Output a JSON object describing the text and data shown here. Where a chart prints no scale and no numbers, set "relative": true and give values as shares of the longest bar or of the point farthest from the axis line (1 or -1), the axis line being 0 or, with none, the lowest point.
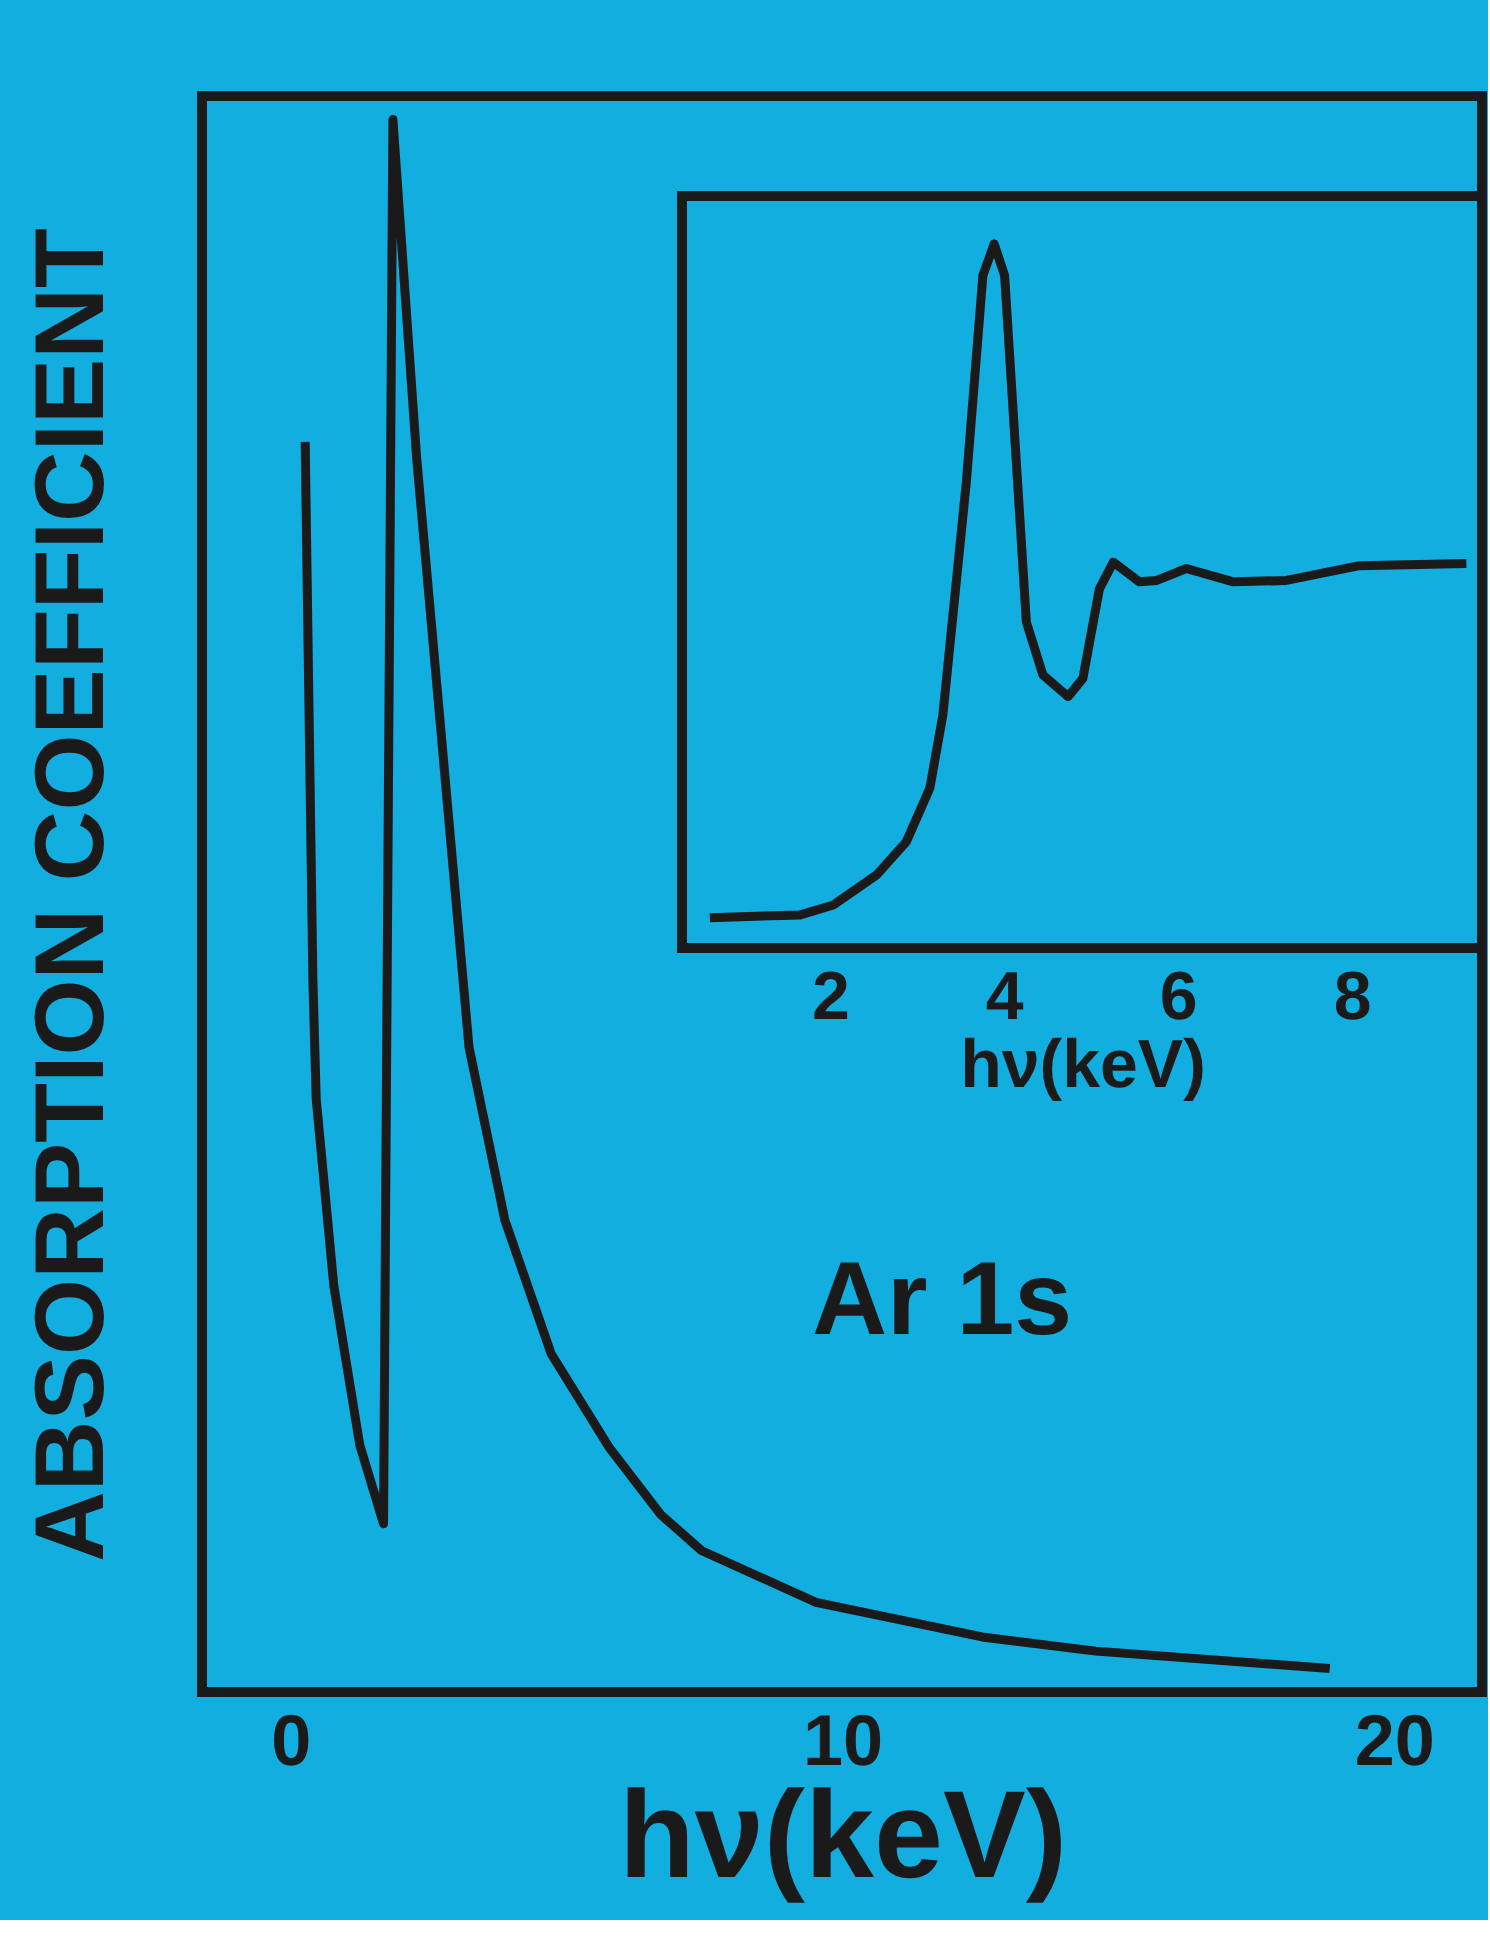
{
  "chart_data": [
    {
      "type": "line",
      "xlabel": "hν(keV)",
      "ylabel": "ABSORPTION COEFFICIENT",
      "relative": true,
      "xlim": [
        -1.6,
        21.6
      ],
      "xticks": [
        0,
        10,
        20
      ],
      "annotations": [
        "Ar 1s"
      ],
      "x": [
        0.27,
        0.41,
        0.47,
        0.79,
        1.26,
        1.69,
        1.86,
        2.29,
        3.24,
        3.89,
        4.73,
        5.77,
        6.71,
        7.45,
        9.53,
        12.54,
        14.6,
        18.84
      ],
      "series": [
        {
          "color": "#1a1a1a",
          "values": [
            0.795,
            0.452,
            0.377,
            0.258,
            0.157,
            0.107,
            1.0,
            0.785,
            0.41,
            0.3,
            0.215,
            0.156,
            0.113,
            0.09,
            0.057,
            0.035,
            0.026,
            0.015
          ]
        }
      ]
    },
    {
      "type": "line",
      "xlabel": "hν(keV)",
      "relative": true,
      "xlim": [
        0.3,
        9.5
      ],
      "xticks": [
        2,
        4,
        6,
        8
      ],
      "x": [
        0.62,
        1.66,
        2.04,
        2.54,
        2.88,
        3.15,
        3.3,
        3.57,
        3.76,
        3.89,
        4.01,
        4.26,
        4.45,
        4.74,
        4.91,
        5.1,
        5.26,
        5.56,
        5.76,
        6.1,
        6.64,
        7.25,
        8.09,
        9.32
      ],
      "series": [
        {
          "color": "#1a1a1a",
          "values": [
            0.043,
            0.047,
            0.061,
            0.104,
            0.151,
            0.227,
            0.331,
            0.662,
            0.955,
            1.0,
            0.955,
            0.463,
            0.388,
            0.357,
            0.383,
            0.51,
            0.548,
            0.52,
            0.522,
            0.539,
            0.52,
            0.522,
            0.543,
            0.546
          ]
        }
      ]
    }
  ]
}
